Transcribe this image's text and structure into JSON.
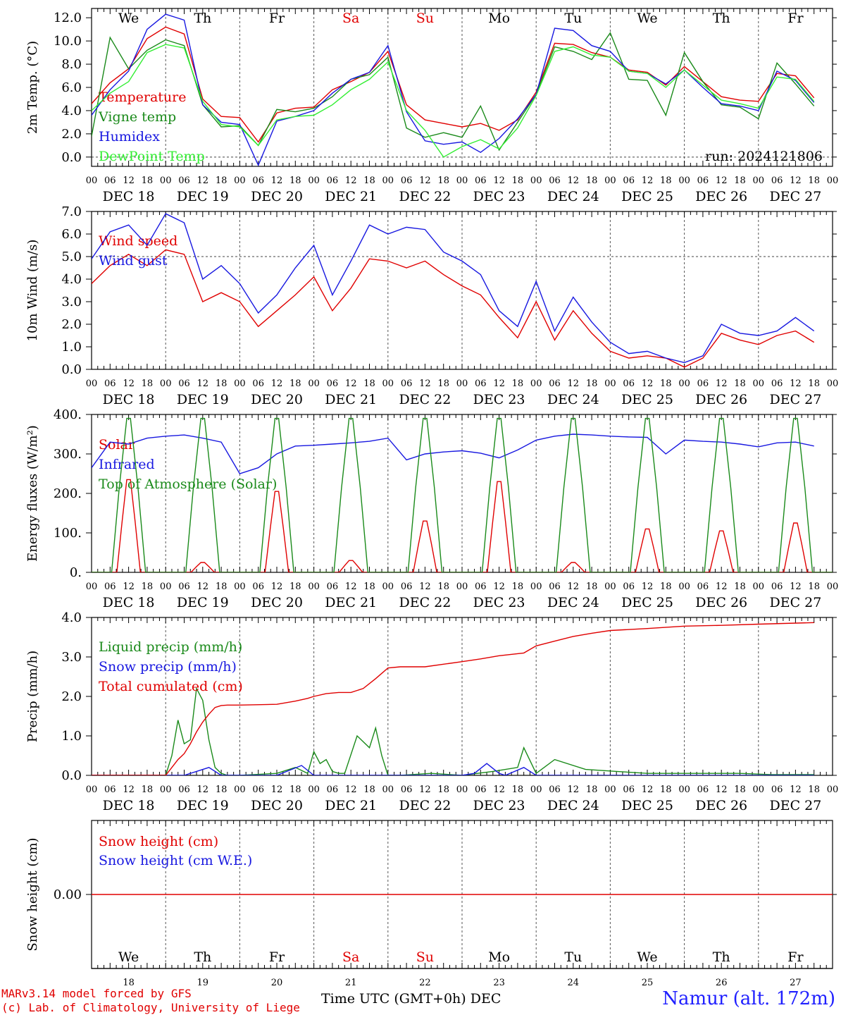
{
  "colors": {
    "red": "#e00000",
    "green": "#1a8a1a",
    "blue": "#1818e0",
    "lightgreen": "#33ee33",
    "axis": "#000000"
  },
  "day_names": [
    "We",
    "Th",
    "Fr",
    "Sa",
    "Su",
    "Mo",
    "Tu",
    "We",
    "Th",
    "Fr"
  ],
  "day_name_colors": [
    "#000000",
    "#000000",
    "#000000",
    "#e00000",
    "#e00000",
    "#000000",
    "#000000",
    "#000000",
    "#000000",
    "#000000"
  ],
  "date_labels": [
    "DEC 18",
    "DEC 19",
    "DEC 20",
    "DEC 21",
    "DEC 22",
    "DEC 23",
    "DEC 24",
    "DEC 25",
    "DEC 26",
    "DEC 27"
  ],
  "hour_labels": [
    "00",
    "06",
    "12",
    "18"
  ],
  "day_numbers": [
    "18",
    "19",
    "20",
    "21",
    "22",
    "23",
    "24",
    "25",
    "26",
    "27"
  ],
  "footer": {
    "credit_line1": "MARv3.14 model forced by GFS",
    "credit_line2": "(c) Lab. of Climatology, University of Liege",
    "x_title": "Time UTC (GMT+0h) DEC",
    "station": "Namur (alt. 172m)"
  },
  "chart_data": [
    {
      "type": "line",
      "ylabel": "2m Temp. (°C)",
      "ylim": [
        -0.8,
        12.8
      ],
      "yticks": [
        "12.0",
        "10.0",
        "8.0",
        "6.0",
        "4.0",
        "2.0",
        "0.0"
      ],
      "ytick_values": [
        12,
        10,
        8,
        6,
        4,
        2,
        0
      ],
      "reference_line": 0,
      "annotation": "run: 2024121806",
      "x_unit": "hours since Dec 18 00 UTC",
      "series": [
        {
          "name": "Temperature",
          "color": "#e00000",
          "x": [
            0,
            6,
            12,
            18,
            24,
            30,
            36,
            42,
            48,
            54,
            60,
            66,
            72,
            78,
            84,
            90,
            96,
            102,
            108,
            114,
            120,
            126,
            132,
            138,
            144,
            150,
            156,
            162,
            168,
            174,
            180,
            186,
            192,
            198,
            204,
            210,
            216,
            222,
            228,
            234
          ],
          "y": [
            4.6,
            6.4,
            7.6,
            10.2,
            11.2,
            10.6,
            5,
            3.5,
            3.4,
            1.3,
            3.8,
            4.2,
            4.3,
            5.8,
            6.5,
            7.3,
            9.1,
            4.5,
            3.2,
            2.9,
            2.6,
            2.9,
            2.3,
            3.2,
            5.6,
            9.8,
            9.7,
            9,
            8.6,
            7.5,
            7.3,
            6.2,
            7.8,
            6.5,
            5.2,
            4.9,
            4.8,
            7.2,
            7,
            5.1
          ]
        },
        {
          "name": "Vigne temp",
          "color": "#1a8a1a",
          "x": [
            0,
            6,
            12,
            18,
            24,
            30,
            36,
            42,
            48,
            54,
            60,
            66,
            72,
            78,
            84,
            90,
            96,
            102,
            108,
            114,
            120,
            126,
            132,
            138,
            144,
            150,
            156,
            162,
            168,
            174,
            180,
            186,
            192,
            198,
            204,
            210,
            216,
            222,
            228,
            234
          ],
          "y": [
            1.8,
            10.3,
            7.6,
            9.2,
            10.1,
            9.6,
            4.5,
            2.6,
            2.7,
            1,
            4.1,
            3.9,
            4.2,
            5.2,
            6.7,
            7.1,
            8.6,
            2.5,
            1.7,
            2.1,
            1.7,
            4.4,
            0.6,
            3,
            5.4,
            9.5,
            9.1,
            8.4,
            10.7,
            6.7,
            6.6,
            3.6,
            9,
            6.5,
            4.5,
            4.3,
            3.3,
            8.1,
            6.3,
            4.4
          ]
        },
        {
          "name": "Humidex",
          "color": "#1818e0",
          "x": [
            0,
            6,
            12,
            18,
            24,
            30,
            36,
            42,
            48,
            54,
            60,
            66,
            72,
            78,
            84,
            90,
            96,
            102,
            108,
            114,
            120,
            126,
            132,
            138,
            144,
            150,
            156,
            162,
            168,
            174,
            180,
            186,
            192,
            198,
            204,
            210,
            216,
            222,
            228,
            234
          ],
          "y": [
            3.6,
            5.8,
            7.4,
            11,
            12.3,
            11.8,
            4.5,
            3,
            2.8,
            -0.7,
            3.1,
            3.5,
            4,
            5.5,
            6.7,
            7.3,
            9.6,
            3.9,
            1.4,
            1.1,
            1.3,
            0.4,
            1.6,
            3.3,
            5.4,
            11.1,
            10.9,
            9.6,
            9.1,
            7.4,
            7.2,
            6.3,
            7.5,
            6,
            4.6,
            4.4,
            4,
            7.4,
            6.6,
            4.7
          ]
        },
        {
          "name": "DewPoint Temp",
          "color": "#33ee33",
          "x": [
            0,
            6,
            12,
            18,
            24,
            30,
            36,
            42,
            48,
            54,
            60,
            66,
            72,
            78,
            84,
            90,
            96,
            102,
            108,
            114,
            120,
            126,
            132,
            138,
            144,
            150,
            156,
            162,
            168,
            174,
            180,
            186,
            192,
            198,
            204,
            210,
            216,
            222,
            228,
            234
          ],
          "y": [
            4,
            5.5,
            6.5,
            9,
            9.7,
            9.4,
            4.8,
            2.8,
            2.6,
            1,
            3.2,
            3.5,
            3.6,
            4.5,
            5.8,
            6.7,
            8.2,
            4,
            2.3,
            0,
            0.9,
            1.5,
            0.7,
            2.5,
            5.3,
            9.1,
            9.5,
            8.8,
            8.6,
            7.4,
            7.2,
            6,
            7.5,
            6.2,
            4.9,
            4.6,
            4.2,
            6.9,
            6.7,
            4.8
          ]
        }
      ]
    },
    {
      "type": "line",
      "ylabel": "10m Wind (m/s)",
      "ylim": [
        0,
        7
      ],
      "yticks": [
        "7.0",
        "6.0",
        "5.0",
        "4.0",
        "3.0",
        "2.0",
        "1.0",
        "0.0"
      ],
      "ytick_values": [
        7,
        6,
        5,
        4,
        3,
        2,
        1,
        0
      ],
      "reference_line": 5,
      "x_unit": "hours since Dec 18 00 UTC",
      "series": [
        {
          "name": "Wind speed",
          "color": "#e00000",
          "x": [
            0,
            6,
            12,
            18,
            24,
            30,
            36,
            42,
            48,
            54,
            60,
            66,
            72,
            78,
            84,
            90,
            96,
            102,
            108,
            114,
            120,
            126,
            132,
            138,
            144,
            150,
            156,
            162,
            168,
            174,
            180,
            186,
            192,
            198,
            204,
            210,
            216,
            222,
            228,
            234
          ],
          "y": [
            3.8,
            4.6,
            5.1,
            4.6,
            5.3,
            5.1,
            3,
            3.4,
            3,
            1.9,
            2.6,
            3.3,
            4.1,
            2.6,
            3.6,
            4.9,
            4.8,
            4.5,
            4.8,
            4.2,
            3.7,
            3.3,
            2.3,
            1.4,
            3,
            1.3,
            2.6,
            1.6,
            0.8,
            0.5,
            0.6,
            0.5,
            0.1,
            0.5,
            1.6,
            1.3,
            1.1,
            1.5,
            1.7,
            1.2
          ]
        },
        {
          "name": "Wind gust",
          "color": "#1818e0",
          "x": [
            0,
            6,
            12,
            18,
            24,
            30,
            36,
            42,
            48,
            54,
            60,
            66,
            72,
            78,
            84,
            90,
            96,
            102,
            108,
            114,
            120,
            126,
            132,
            138,
            144,
            150,
            156,
            162,
            168,
            174,
            180,
            186,
            192,
            198,
            204,
            210,
            216,
            222,
            228,
            234
          ],
          "y": [
            4.9,
            6.1,
            6.4,
            5.5,
            6.9,
            6.5,
            4,
            4.6,
            3.8,
            2.5,
            3.3,
            4.5,
            5.5,
            3.3,
            4.8,
            6.4,
            6,
            6.3,
            6.2,
            5.2,
            4.8,
            4.2,
            2.6,
            1.9,
            3.9,
            1.7,
            3.2,
            2.1,
            1.2,
            0.7,
            0.8,
            0.5,
            0.3,
            0.6,
            2,
            1.6,
            1.5,
            1.7,
            2.3,
            1.7
          ]
        }
      ]
    },
    {
      "type": "line",
      "ylabel": "Energy fluxes (W/m²)",
      "ylim": [
        0,
        400
      ],
      "yticks": [
        "400.",
        "300.",
        "200.",
        "100.",
        "0."
      ],
      "ytick_values": [
        400,
        300,
        200,
        100,
        0
      ],
      "x_unit": "hours since Dec 18 00 UTC",
      "series": [
        {
          "name": "Solar",
          "color": "#e00000",
          "peak_hours": [
            12,
            36,
            60,
            84,
            108,
            132,
            156,
            180,
            204,
            228
          ],
          "peak_values": [
            235,
            25,
            205,
            30,
            130,
            230,
            25,
            110,
            105,
            125
          ]
        },
        {
          "name": "Infrared",
          "color": "#1818e0",
          "x": [
            0,
            6,
            12,
            18,
            24,
            30,
            36,
            42,
            48,
            54,
            60,
            66,
            72,
            78,
            84,
            90,
            96,
            102,
            108,
            114,
            120,
            126,
            132,
            138,
            144,
            150,
            156,
            162,
            168,
            174,
            180,
            186,
            192,
            198,
            204,
            210,
            216,
            222,
            228,
            234
          ],
          "y": [
            265,
            330,
            325,
            340,
            345,
            348,
            340,
            330,
            250,
            265,
            300,
            320,
            322,
            325,
            328,
            332,
            340,
            285,
            300,
            305,
            308,
            302,
            290,
            310,
            335,
            345,
            350,
            348,
            345,
            343,
            342,
            300,
            335,
            332,
            330,
            325,
            318,
            328,
            330,
            320
          ]
        },
        {
          "name": "Top of Atmosphere (Solar)",
          "color": "#1a8a1a",
          "peak_hours": [
            12,
            36,
            60,
            84,
            108,
            132,
            156,
            180,
            204,
            228
          ],
          "peak_values": [
            390,
            390,
            390,
            390,
            390,
            390,
            390,
            390,
            390,
            390
          ]
        }
      ]
    },
    {
      "type": "line",
      "ylabel": "Precip (mm/h)",
      "ylim": [
        0,
        4
      ],
      "yticks": [
        "4.0",
        "3.0",
        "2.0",
        "1.0",
        "0.0"
      ],
      "ytick_values": [
        4,
        3,
        2,
        1,
        0
      ],
      "x_unit": "hours since Dec 18 00 UTC",
      "series": [
        {
          "name": "Liquid precip (mm/h)",
          "color": "#1a8a1a",
          "x": [
            0,
            18,
            24,
            26,
            28,
            30,
            32,
            34,
            36,
            38,
            40,
            42,
            44,
            48,
            60,
            66,
            70,
            72,
            74,
            76,
            78,
            80,
            82,
            86,
            90,
            92,
            94,
            96,
            100,
            110,
            120,
            130,
            138,
            140,
            144,
            150,
            160,
            170,
            180,
            190,
            200,
            210,
            220,
            234
          ],
          "y": [
            0,
            0,
            0,
            0.5,
            1.4,
            0.8,
            0.9,
            2.2,
            1.9,
            0.9,
            0.2,
            0.05,
            0,
            0,
            0.05,
            0.2,
            0.05,
            0.6,
            0.3,
            0.4,
            0.1,
            0.05,
            0.05,
            1,
            0.7,
            1.2,
            0.5,
            0,
            0,
            0.05,
            0,
            0.1,
            0.2,
            0.7,
            0.05,
            0.4,
            0.15,
            0.1,
            0.05,
            0.05,
            0.05,
            0.05,
            0.02,
            0.02
          ]
        },
        {
          "name": "Snow precip (mm/h)",
          "color": "#1818e0",
          "x": [
            0,
            30,
            34,
            38,
            42,
            60,
            68,
            72,
            120,
            124,
            128,
            132,
            134,
            140,
            144,
            234
          ],
          "y": [
            0,
            0,
            0.1,
            0.2,
            0,
            0,
            0.25,
            0,
            0,
            0.05,
            0.3,
            0.05,
            0,
            0.2,
            0,
            0
          ]
        },
        {
          "name": "Total cumulated (cm)",
          "color": "#e00000",
          "x": [
            0,
            24,
            26,
            28,
            30,
            32,
            34,
            36,
            38,
            40,
            42,
            44,
            48,
            60,
            66,
            70,
            72,
            76,
            80,
            84,
            88,
            92,
            96,
            100,
            108,
            120,
            126,
            132,
            140,
            144,
            150,
            156,
            162,
            168,
            180,
            192,
            204,
            216,
            234
          ],
          "y": [
            0,
            0,
            0.2,
            0.4,
            0.55,
            0.8,
            1.1,
            1.35,
            1.55,
            1.72,
            1.77,
            1.78,
            1.78,
            1.8,
            1.88,
            1.95,
            2,
            2.07,
            2.1,
            2.1,
            2.2,
            2.45,
            2.72,
            2.75,
            2.75,
            2.88,
            2.95,
            3.03,
            3.1,
            3.28,
            3.4,
            3.52,
            3.6,
            3.67,
            3.72,
            3.78,
            3.8,
            3.83,
            3.87
          ]
        }
      ]
    },
    {
      "type": "line",
      "ylabel": "Snow height (cm)",
      "yticks": [
        "0.00"
      ],
      "ytick_values": [
        0
      ],
      "ylim": [
        -1,
        1
      ],
      "x_unit": "hours since Dec 18 00 UTC",
      "series": [
        {
          "name": "Snow height (cm)",
          "color": "#e00000",
          "x": [
            0,
            240
          ],
          "y": [
            0,
            0
          ]
        },
        {
          "name": "Snow height (cm W.E.)",
          "color": "#1818e0",
          "x": [],
          "y": []
        }
      ]
    }
  ]
}
